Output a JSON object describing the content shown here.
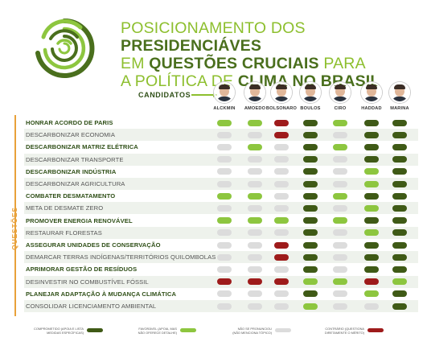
{
  "title": {
    "line1_light": "POSICIONAMENTO DOS ",
    "line1_bold": "PRESIDENCIÁVES",
    "line2_light1": "EM ",
    "line2_bold": "QUESTÕES CRUCIAIS",
    "line2_light2": " PARA",
    "line3_light": "A POLÍTICA DE ",
    "line3_bold": "CLIMA NO BRASIL"
  },
  "candidates_label": "CANDIDATOS",
  "questions_label": "QUESTÕES",
  "candidates": [
    "ALCKMIN",
    "AMOEDO",
    "BOLSONARO",
    "BOULOS",
    "CIRO",
    "HADDAD",
    "MARINA"
  ],
  "colors": {
    "committed": "#3f5a16",
    "favorable": "#8dc63f",
    "neutral": "#dcdcdc",
    "contrary": "#9e1b1b",
    "accent": "#e8a13a"
  },
  "rows": [
    {
      "label": "HONRAR ACORDO DE PARIS",
      "bold": true,
      "values": [
        "F",
        "F",
        "C",
        "D",
        "F",
        "D",
        "D"
      ]
    },
    {
      "label": "DESCARBONIZAR ECONOMIA",
      "bold": false,
      "values": [
        "N",
        "N",
        "C",
        "D",
        "N",
        "D",
        "D"
      ]
    },
    {
      "label": "DESCARBONIZAR MATRIZ ELÉTRICA",
      "bold": true,
      "values": [
        "N",
        "F",
        "N",
        "D",
        "F",
        "D",
        "D"
      ]
    },
    {
      "label": "DESCARBONIZAR TRANSPORTE",
      "bold": false,
      "values": [
        "N",
        "N",
        "N",
        "D",
        "N",
        "D",
        "D"
      ]
    },
    {
      "label": "DESCARBONIZAR INDÚSTRIA",
      "bold": true,
      "values": [
        "N",
        "N",
        "N",
        "D",
        "N",
        "F",
        "D"
      ]
    },
    {
      "label": "DESCARBONIZAR AGRICULTURA",
      "bold": false,
      "values": [
        "N",
        "N",
        "N",
        "D",
        "N",
        "F",
        "D"
      ]
    },
    {
      "label": "COMBATER DESMATAMENTO",
      "bold": true,
      "values": [
        "F",
        "F",
        "N",
        "D",
        "F",
        "D",
        "D"
      ]
    },
    {
      "label": "META DE DESMATE ZERO",
      "bold": false,
      "values": [
        "N",
        "N",
        "N",
        "D",
        "N",
        "F",
        "D"
      ]
    },
    {
      "label": "PROMOVER ENERGIA RENOVÁVEL",
      "bold": true,
      "values": [
        "F",
        "F",
        "F",
        "D",
        "F",
        "D",
        "D"
      ]
    },
    {
      "label": "RESTAURAR FLORESTAS",
      "bold": false,
      "values": [
        "N",
        "N",
        "N",
        "D",
        "N",
        "F",
        "D"
      ]
    },
    {
      "label": "ASSEGURAR UNIDADES DE CONSERVAÇÃO",
      "bold": true,
      "values": [
        "N",
        "N",
        "C",
        "D",
        "N",
        "D",
        "D"
      ]
    },
    {
      "label": "DEMARCAR TERRAS INDÍGENAS/TERRITÓRIOS QUILOMBOLAS",
      "bold": false,
      "values": [
        "N",
        "N",
        "C",
        "D",
        "N",
        "D",
        "D"
      ]
    },
    {
      "label": "APRIMORAR GESTÃO DE RESÍDUOS",
      "bold": true,
      "values": [
        "N",
        "N",
        "N",
        "D",
        "N",
        "D",
        "D"
      ]
    },
    {
      "label": "DESINVESTIR NO COMBUSTÍVEL FÓSSIL",
      "bold": false,
      "values": [
        "C",
        "C",
        "C",
        "F",
        "F",
        "C",
        "F"
      ]
    },
    {
      "label": "PLANEJAR ADAPTAÇÃO À MUDANÇA CLIMÁTICA",
      "bold": true,
      "values": [
        "N",
        "N",
        "N",
        "D",
        "N",
        "F",
        "D"
      ]
    },
    {
      "label": "CONSOLIDAR LICENCIAMENTO AMBIENTAL",
      "bold": false,
      "values": [
        "N",
        "N",
        "N",
        "F",
        "N",
        "N",
        "D"
      ]
    }
  ],
  "legend": [
    {
      "key": "D",
      "text1": "COMPROMETIDO (APOIA E LISTA",
      "text2": "MEDIDAS ESPECÍFICAS)"
    },
    {
      "key": "F",
      "text1": "FAVORÁVEL (APOIA, MAS",
      "text2": "NÃO OFERECE DETALHE)"
    },
    {
      "key": "N",
      "text1": "NÃO SE PRONUNCIOU",
      "text2": "(NÃO MENCIONA TÓPICO)"
    },
    {
      "key": "C",
      "text1": "CONTRÁRIO (QUESTIONA",
      "text2": "DIRETAMENTE O MÉRITO)"
    }
  ]
}
